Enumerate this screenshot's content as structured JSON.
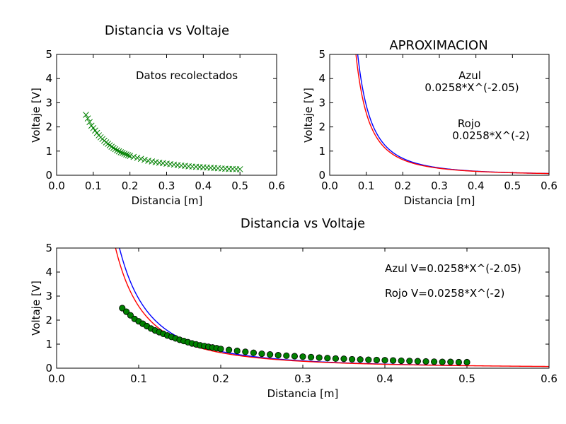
{
  "chart_data": [
    {
      "type": "scatter",
      "title": "Distancia vs Voltaje",
      "xlabel": "Distancia [m]",
      "ylabel": "Voltaje [V]",
      "xlim": [
        0.0,
        0.6
      ],
      "ylim": [
        0,
        5
      ],
      "xticks": [
        "0.0",
        "0.1",
        "0.2",
        "0.3",
        "0.4",
        "0.5",
        "0.6"
      ],
      "yticks": [
        "0",
        "1",
        "2",
        "3",
        "4",
        "5"
      ],
      "annotations": [
        "Datos recolectados"
      ],
      "series": [
        {
          "color": "#008000",
          "marker": "x",
          "x": [
            0.08,
            0.085,
            0.09,
            0.095,
            0.1,
            0.105,
            0.11,
            0.115,
            0.12,
            0.125,
            0.13,
            0.135,
            0.14,
            0.145,
            0.15,
            0.155,
            0.16,
            0.165,
            0.17,
            0.175,
            0.18,
            0.185,
            0.19,
            0.195,
            0.2,
            0.21,
            0.22,
            0.23,
            0.24,
            0.25,
            0.26,
            0.27,
            0.28,
            0.29,
            0.3,
            0.31,
            0.32,
            0.33,
            0.34,
            0.35,
            0.36,
            0.37,
            0.38,
            0.39,
            0.4,
            0.41,
            0.42,
            0.43,
            0.44,
            0.45,
            0.46,
            0.47,
            0.48,
            0.49,
            0.5
          ],
          "y": [
            2.5,
            2.35,
            2.2,
            2.05,
            1.95,
            1.85,
            1.75,
            1.65,
            1.57,
            1.5,
            1.43,
            1.36,
            1.3,
            1.24,
            1.18,
            1.13,
            1.08,
            1.03,
            0.99,
            0.95,
            0.92,
            0.89,
            0.86,
            0.83,
            0.8,
            0.76,
            0.72,
            0.68,
            0.64,
            0.6,
            0.57,
            0.54,
            0.52,
            0.5,
            0.48,
            0.46,
            0.44,
            0.42,
            0.4,
            0.39,
            0.37,
            0.36,
            0.35,
            0.34,
            0.33,
            0.32,
            0.31,
            0.3,
            0.29,
            0.28,
            0.27,
            0.26,
            0.26,
            0.25,
            0.25
          ]
        }
      ]
    },
    {
      "type": "line",
      "title": "APROXIMACION",
      "xlabel": "Distancia [m]",
      "ylabel": "Voltaje [V]",
      "xlim": [
        0.0,
        0.6
      ],
      "ylim": [
        0,
        5
      ],
      "xticks": [
        "0.0",
        "0.1",
        "0.2",
        "0.3",
        "0.4",
        "0.5",
        "0.6"
      ],
      "yticks": [
        "0",
        "1",
        "2",
        "3",
        "4",
        "5"
      ],
      "annotations": [
        "Azul",
        "0.0258*X^(-2.05)",
        "Rojo",
        "0.0258*X^(-2)"
      ],
      "series": [
        {
          "color": "#0000ff",
          "coef": 0.0258,
          "exponent": -2.05,
          "x_range": [
            0.01,
            0.6
          ]
        },
        {
          "color": "#ff0000",
          "coef": 0.0258,
          "exponent": -2.0,
          "x_range": [
            0.01,
            0.6
          ]
        }
      ]
    },
    {
      "type": "line",
      "title": "Distancia vs Voltaje",
      "xlabel": "Distancia [m]",
      "ylabel": "Voltaje [V]",
      "xlim": [
        0.0,
        0.6
      ],
      "ylim": [
        0,
        5
      ],
      "xticks": [
        "0.0",
        "0.1",
        "0.2",
        "0.3",
        "0.4",
        "0.5",
        "0.6"
      ],
      "yticks": [
        "0",
        "1",
        "2",
        "3",
        "4",
        "5"
      ],
      "annotations": [
        "Azul V=0.0258*X^(-2.05)",
        "Rojo V=0.0258*X^(-2)"
      ],
      "series": [
        {
          "color": "#0000ff",
          "coef": 0.0258,
          "exponent": -2.05,
          "x_range": [
            0.01,
            0.5
          ]
        },
        {
          "color": "#ff0000",
          "coef": 0.0258,
          "exponent": -2.0,
          "x_range": [
            0.01,
            0.6
          ]
        },
        {
          "color": "#008000",
          "marker": "o",
          "x": [
            0.08,
            0.085,
            0.09,
            0.095,
            0.1,
            0.105,
            0.11,
            0.115,
            0.12,
            0.125,
            0.13,
            0.135,
            0.14,
            0.145,
            0.15,
            0.155,
            0.16,
            0.165,
            0.17,
            0.175,
            0.18,
            0.185,
            0.19,
            0.195,
            0.2,
            0.21,
            0.22,
            0.23,
            0.24,
            0.25,
            0.26,
            0.27,
            0.28,
            0.29,
            0.3,
            0.31,
            0.32,
            0.33,
            0.34,
            0.35,
            0.36,
            0.37,
            0.38,
            0.39,
            0.4,
            0.41,
            0.42,
            0.43,
            0.44,
            0.45,
            0.46,
            0.47,
            0.48,
            0.49,
            0.5
          ],
          "y": [
            2.5,
            2.35,
            2.2,
            2.05,
            1.95,
            1.85,
            1.75,
            1.65,
            1.57,
            1.5,
            1.43,
            1.36,
            1.3,
            1.24,
            1.18,
            1.13,
            1.08,
            1.03,
            0.99,
            0.95,
            0.92,
            0.89,
            0.86,
            0.83,
            0.8,
            0.76,
            0.72,
            0.68,
            0.64,
            0.6,
            0.57,
            0.54,
            0.52,
            0.5,
            0.48,
            0.46,
            0.44,
            0.42,
            0.4,
            0.39,
            0.37,
            0.36,
            0.35,
            0.34,
            0.33,
            0.32,
            0.31,
            0.3,
            0.29,
            0.28,
            0.27,
            0.26,
            0.26,
            0.25,
            0.25
          ]
        }
      ]
    }
  ]
}
